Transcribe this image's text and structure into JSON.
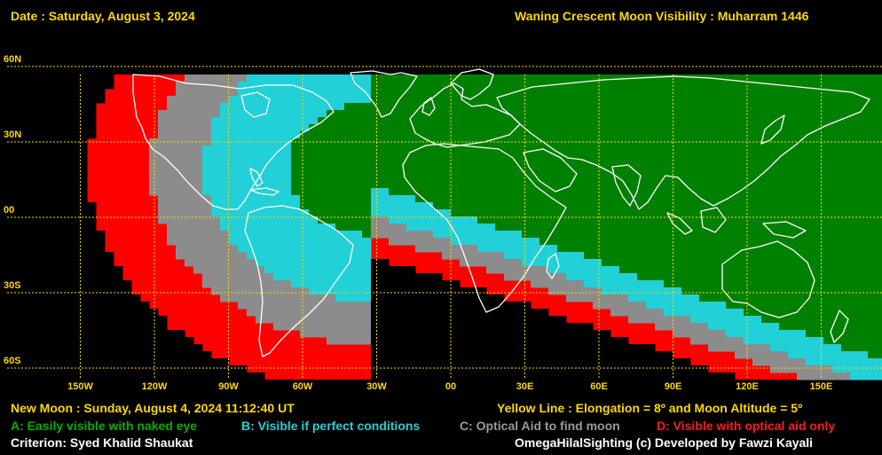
{
  "header": {
    "date": "Date : Saturday, August 3, 2024",
    "title": "Waning Crescent Moon Visibility : Muharram 1446"
  },
  "map": {
    "lat_labels": [
      {
        "label": "60N",
        "lat": 60
      },
      {
        "label": "30N",
        "lat": 30
      },
      {
        "label": "00",
        "lat": 0
      },
      {
        "label": "30S",
        "lat": -30
      },
      {
        "label": "60S",
        "lat": -60
      }
    ],
    "lon_labels": [
      {
        "label": "150W",
        "lon": -150
      },
      {
        "label": "120W",
        "lon": -120
      },
      {
        "label": "90W",
        "lon": -90
      },
      {
        "label": "60W",
        "lon": -60
      },
      {
        "label": "30W",
        "lon": -30
      },
      {
        "label": "00",
        "lon": 0
      },
      {
        "label": "30E",
        "lon": 30
      },
      {
        "label": "60E",
        "lon": 60
      },
      {
        "label": "90E",
        "lon": 90
      },
      {
        "label": "120E",
        "lon": 120
      },
      {
        "label": "150E",
        "lon": 150
      }
    ],
    "zone_colors": {
      "A": "#008000",
      "B": "#22d0d8",
      "C": "#8c8c8c",
      "D": "#ff0000",
      "none": "#000000",
      "grid": "#ffd800",
      "coast": "#ffffff"
    }
  },
  "footer": {
    "new_moon": "New Moon : Sunday, August 4, 2024  11:12:40  UT",
    "yellow_line": "Yellow Line : Elongation = 8º  and Moon Altitude = 5º",
    "legend_a": "A: Easily visible with naked eye",
    "legend_b": "B: Visible if perfect conditions",
    "legend_c": "C: Optical Aid to find moon",
    "legend_d": "D: Visible with optical aid only",
    "criterion": "Criterion: Syed Khalid Shaukat",
    "credit": "OmegaHilalSighting  (c)  Developed by Fawzi Kayali"
  }
}
